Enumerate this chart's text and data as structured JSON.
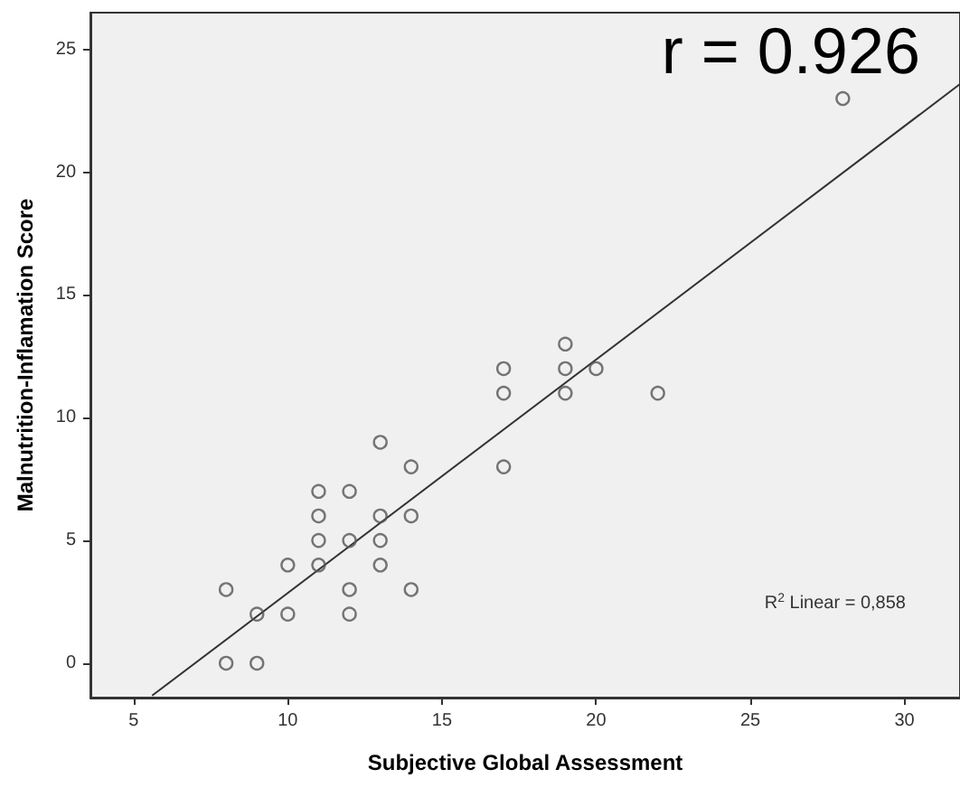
{
  "chart_data": {
    "type": "scatter",
    "xlabel": "Subjective Global Assessment",
    "ylabel": "Malnutrition-Inflamation Score",
    "annotations": [
      "r = 0.926",
      "R$^{2}$ Linear = 0,858"
    ],
    "marker": "circle",
    "grid": false,
    "xlim": [
      3.6,
      31.8
    ],
    "xticks": [
      5,
      10,
      15,
      20,
      25,
      30
    ],
    "ylim": [
      -1.4,
      26.5
    ],
    "yticks": [
      0,
      5,
      10,
      15,
      20,
      25
    ],
    "series": [
      {
        "color": "#555555",
        "x": [
          8,
          9,
          8,
          9,
          10,
          10,
          11,
          11,
          11,
          11,
          12,
          12,
          12,
          12,
          13,
          13,
          13,
          13,
          14,
          14,
          14,
          17,
          17,
          17,
          19,
          19,
          19,
          20,
          22,
          28
        ],
        "values": [
          0,
          0,
          3,
          2,
          4,
          2,
          7,
          6,
          5,
          4,
          7,
          5,
          3,
          2,
          9,
          6,
          5,
          4,
          8,
          6,
          3,
          12,
          11,
          8,
          13,
          12,
          11,
          12,
          11,
          23
        ]
      },
      {
        "type": "line",
        "marker": "none",
        "color": "#333333",
        "x": [
          5.6,
          31.8
        ],
        "values": [
          -1.32,
          23.59
        ]
      }
    ]
  }
}
